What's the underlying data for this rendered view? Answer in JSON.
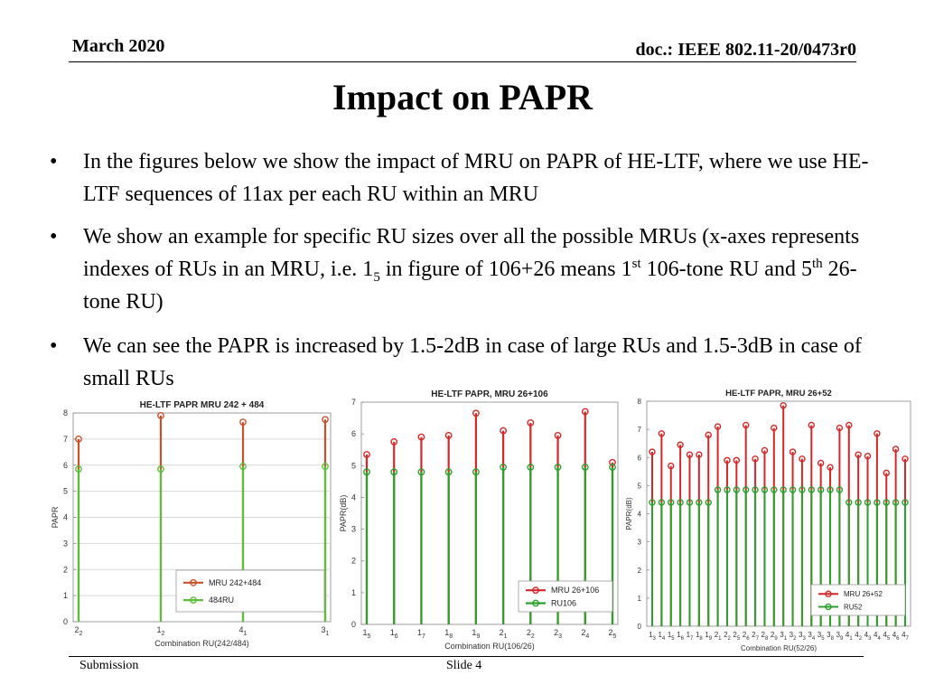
{
  "header": {
    "date": "March 2020",
    "doc": "doc.: IEEE 802.11-20/0473r0"
  },
  "title": "Impact on PAPR",
  "bullets": [
    {
      "mark": "•",
      "text": "In the figures below we show the impact of MRU on PAPR of HE-LTF, where we use HE-LTF sequences of 11ax per each RU within an MRU"
    },
    {
      "mark": "•",
      "text_a": "We show an example for specific RU sizes over all the possible MRUs (x-axes represents indexes of RUs in an MRU, i.e. 1",
      "sub": "5",
      "text_b": " in figure of 106+26 means 1",
      "sup1": "st",
      "text_c": " 106-tone RU and 5",
      "sup2": "th",
      "text_d": " 26-tone RU)"
    },
    {
      "mark": "•",
      "text": "We can see the PAPR is increased by 1.5-2dB in case of large RUs and 1.5-3dB in case of small RUs"
    }
  ],
  "footer": {
    "left": "Submission",
    "center": "Slide 4"
  },
  "colors": {
    "mru": "#d62728",
    "ru": "#2ca02c",
    "mru_chart1": "#c8502a",
    "ru_chart1": "#5cbf3a",
    "grid": "#d9d9d9"
  },
  "chart_data": [
    {
      "type": "stem",
      "title": "HE-LTF PAPR MRU 242 + 484",
      "xlabel": "Combination RU(242/484)",
      "ylabel": "PAPR",
      "ylim": [
        0,
        8
      ],
      "yticks": [
        "0",
        "1",
        "2",
        "3",
        "4",
        "5",
        "6",
        "7",
        "8"
      ],
      "categories": [
        {
          "main": "2",
          "sub": "2"
        },
        {
          "main": "1",
          "sub": "2"
        },
        {
          "main": "4",
          "sub": "1"
        },
        {
          "main": "3",
          "sub": "1"
        }
      ],
      "series": [
        {
          "name": "MRU 242+484",
          "values": [
            7.0,
            7.9,
            7.65,
            7.75
          ]
        },
        {
          "name": "484RU",
          "values": [
            5.85,
            5.85,
            5.95,
            5.95
          ]
        }
      ],
      "legend_position": "bottom-right",
      "grid": true
    },
    {
      "type": "stem",
      "title": "HE-LTF PAPR, MRU 26+106",
      "xlabel": "Combination RU(106/26)",
      "ylabel": "PAPR(dB)",
      "ylim": [
        0,
        7
      ],
      "yticks": [
        "0",
        "1",
        "2",
        "3",
        "4",
        "5",
        "6",
        "7"
      ],
      "categories": [
        {
          "main": "1",
          "sub": "5"
        },
        {
          "main": "1",
          "sub": "6"
        },
        {
          "main": "1",
          "sub": "7"
        },
        {
          "main": "1",
          "sub": "8"
        },
        {
          "main": "1",
          "sub": "9"
        },
        {
          "main": "2",
          "sub": "1"
        },
        {
          "main": "2",
          "sub": "2"
        },
        {
          "main": "2",
          "sub": "3"
        },
        {
          "main": "2",
          "sub": "4"
        },
        {
          "main": "2",
          "sub": "5"
        }
      ],
      "series": [
        {
          "name": "MRU 26+106",
          "values": [
            5.35,
            5.75,
            5.9,
            5.95,
            6.65,
            6.1,
            6.35,
            5.95,
            6.7,
            5.1
          ]
        },
        {
          "name": "RU106",
          "values": [
            4.8,
            4.8,
            4.8,
            4.8,
            4.8,
            4.95,
            4.95,
            4.95,
            4.95,
            4.95
          ]
        }
      ],
      "legend_position": "bottom-right",
      "grid": false
    },
    {
      "type": "stem",
      "title": "HE-LTF PAPR, MRU 26+52",
      "xlabel": "Combination RU(52/26)",
      "ylabel": "PAPR(dB)",
      "ylim": [
        0,
        8
      ],
      "yticks": [
        "0",
        "1",
        "2",
        "3",
        "4",
        "5",
        "6",
        "7",
        "8"
      ],
      "categories": [
        {
          "main": "1",
          "sub": "3"
        },
        {
          "main": "1",
          "sub": "4"
        },
        {
          "main": "1",
          "sub": "5"
        },
        {
          "main": "1",
          "sub": "6"
        },
        {
          "main": "1",
          "sub": "7"
        },
        {
          "main": "1",
          "sub": "8"
        },
        {
          "main": "1",
          "sub": "9"
        },
        {
          "main": "2",
          "sub": "1"
        },
        {
          "main": "2",
          "sub": "2"
        },
        {
          "main": "2",
          "sub": "5"
        },
        {
          "main": "2",
          "sub": "6"
        },
        {
          "main": "2",
          "sub": "7"
        },
        {
          "main": "2",
          "sub": "8"
        },
        {
          "main": "2",
          "sub": "9"
        },
        {
          "main": "3",
          "sub": "1"
        },
        {
          "main": "3",
          "sub": "2"
        },
        {
          "main": "3",
          "sub": "3"
        },
        {
          "main": "3",
          "sub": "4"
        },
        {
          "main": "3",
          "sub": "5"
        },
        {
          "main": "3",
          "sub": "8"
        },
        {
          "main": "3",
          "sub": "9"
        },
        {
          "main": "4",
          "sub": "1"
        },
        {
          "main": "4",
          "sub": "2"
        },
        {
          "main": "4",
          "sub": "3"
        },
        {
          "main": "4",
          "sub": "4"
        },
        {
          "main": "4",
          "sub": "5"
        },
        {
          "main": "4",
          "sub": "6"
        },
        {
          "main": "4",
          "sub": "7"
        }
      ],
      "series": [
        {
          "name": "MRU 26+52",
          "values": [
            6.2,
            6.85,
            5.7,
            6.45,
            6.1,
            6.1,
            6.8,
            7.1,
            5.9,
            5.9,
            7.15,
            5.95,
            6.25,
            7.05,
            7.85,
            6.2,
            5.95,
            7.15,
            5.8,
            5.65,
            7.05,
            7.15,
            6.1,
            6.05,
            6.85,
            5.45,
            6.3,
            5.95
          ]
        },
        {
          "name": "RU52",
          "values": [
            4.4,
            4.4,
            4.4,
            4.4,
            4.4,
            4.4,
            4.4,
            4.85,
            4.85,
            4.85,
            4.85,
            4.85,
            4.85,
            4.85,
            4.85,
            4.85,
            4.85,
            4.85,
            4.85,
            4.85,
            4.85,
            4.4,
            4.4,
            4.4,
            4.4,
            4.4,
            4.4,
            4.4
          ]
        }
      ],
      "legend_position": "bottom-right",
      "grid": false
    }
  ]
}
